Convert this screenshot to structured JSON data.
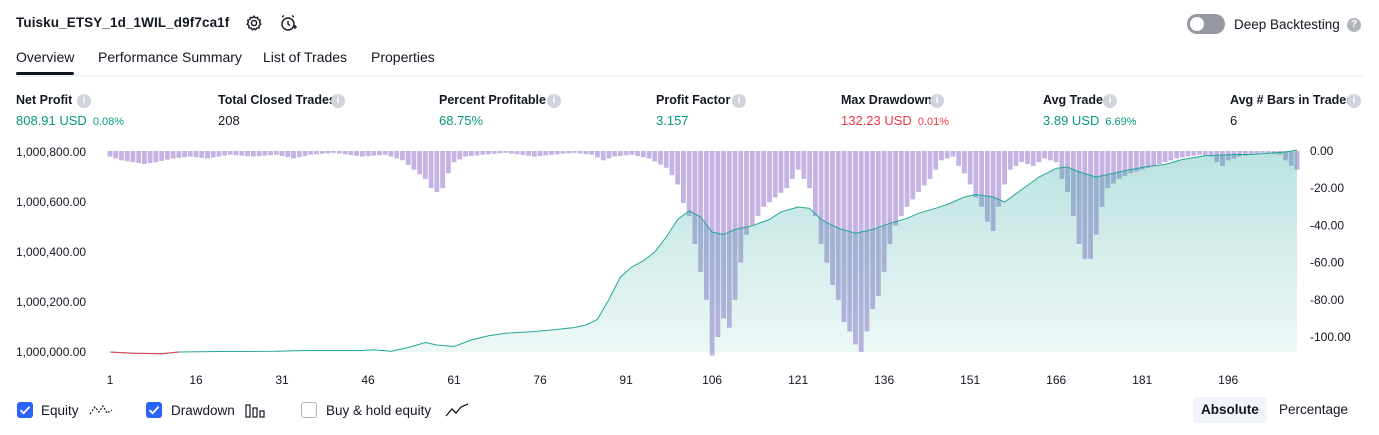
{
  "header": {
    "title": "Tuisku_ETSY_1d_1WIL_d9f7ca1f",
    "settings_icon": "gear-icon",
    "alert_icon": "add-alert-icon",
    "deep_backtesting_label": "Deep Backtesting",
    "deep_backtesting_enabled": false
  },
  "tabs": [
    {
      "label": "Overview",
      "active": true
    },
    {
      "label": "Performance Summary",
      "active": false
    },
    {
      "label": "List of Trades",
      "active": false
    },
    {
      "label": "Properties",
      "active": false
    }
  ],
  "metrics": [
    {
      "label": "Net Profit",
      "value": "808.91 USD",
      "pct": "0.08%",
      "color": "#089981"
    },
    {
      "label": "Total Closed Trades",
      "value": "208",
      "pct": "",
      "color": "#131722"
    },
    {
      "label": "Percent Profitable",
      "value": "68.75%",
      "pct": "",
      "color": "#089981"
    },
    {
      "label": "Profit Factor",
      "value": "3.157",
      "pct": "",
      "color": "#089981"
    },
    {
      "label": "Max Drawdown",
      "value": "132.23 USD",
      "pct": "0.01%",
      "color": "#f23645"
    },
    {
      "label": "Avg Trade",
      "value": "3.89 USD",
      "pct": "6.69%",
      "color": "#089981"
    },
    {
      "label": "Avg # Bars in Trades",
      "value": "6",
      "pct": "",
      "color": "#131722"
    }
  ],
  "chart_data": {
    "type": "area",
    "x_ticks": [
      "1",
      "16",
      "31",
      "46",
      "61",
      "76",
      "91",
      "106",
      "121",
      "136",
      "151",
      "166",
      "181",
      "196"
    ],
    "left_axis_ticks": [
      "1,000,800.00",
      "1,000,600.00",
      "1,000,400.00",
      "1,000,200.00",
      "1,000,000.00"
    ],
    "right_axis_ticks": [
      "0.00",
      "-20.00",
      "-40.00",
      "-60.00",
      "-80.00",
      "-100.00"
    ],
    "left_ylim": [
      1000000,
      1000800
    ],
    "right_ylim": [
      -110,
      0
    ],
    "xlim": [
      1,
      208
    ],
    "series": [
      {
        "name": "Equity",
        "color": "#26a69a",
        "points": [
          [
            1,
            1000000
          ],
          [
            5,
            999995
          ],
          [
            10,
            999993
          ],
          [
            13,
            1000000
          ],
          [
            20,
            1000002
          ],
          [
            30,
            1000003
          ],
          [
            35,
            1000006
          ],
          [
            45,
            1000006
          ],
          [
            47,
            1000009
          ],
          [
            50,
            1000003
          ],
          [
            53,
            1000018
          ],
          [
            56,
            1000038
          ],
          [
            58,
            1000028
          ],
          [
            61,
            1000022
          ],
          [
            64,
            1000048
          ],
          [
            67,
            1000065
          ],
          [
            70,
            1000075
          ],
          [
            75,
            1000082
          ],
          [
            78,
            1000088
          ],
          [
            82,
            1000098
          ],
          [
            84,
            1000108
          ],
          [
            86,
            1000130
          ],
          [
            88,
            1000210
          ],
          [
            90,
            1000300
          ],
          [
            92,
            1000340
          ],
          [
            94,
            1000365
          ],
          [
            96,
            1000400
          ],
          [
            98,
            1000460
          ],
          [
            100,
            1000530
          ],
          [
            102,
            1000565
          ],
          [
            104,
            1000540
          ],
          [
            106,
            1000480
          ],
          [
            108,
            1000470
          ],
          [
            110,
            1000490
          ],
          [
            113,
            1000505
          ],
          [
            116,
            1000530
          ],
          [
            118,
            1000560
          ],
          [
            121,
            1000580
          ],
          [
            123,
            1000575
          ],
          [
            125,
            1000530
          ],
          [
            128,
            1000495
          ],
          [
            131,
            1000475
          ],
          [
            134,
            1000490
          ],
          [
            137,
            1000515
          ],
          [
            140,
            1000535
          ],
          [
            142,
            1000555
          ],
          [
            145,
            1000575
          ],
          [
            147,
            1000590
          ],
          [
            150,
            1000620
          ],
          [
            152,
            1000630
          ],
          [
            155,
            1000620
          ],
          [
            157,
            1000600
          ],
          [
            160,
            1000650
          ],
          [
            163,
            1000700
          ],
          [
            166,
            1000735
          ],
          [
            168,
            1000740
          ],
          [
            170,
            1000720
          ],
          [
            173,
            1000700
          ],
          [
            176,
            1000715
          ],
          [
            179,
            1000730
          ],
          [
            182,
            1000742
          ],
          [
            185,
            1000750
          ],
          [
            188,
            1000770
          ],
          [
            192,
            1000785
          ],
          [
            197,
            1000790
          ],
          [
            200,
            1000790
          ],
          [
            203,
            1000795
          ],
          [
            206,
            1000800
          ],
          [
            208,
            1000808
          ]
        ]
      },
      {
        "name": "Drawdown",
        "color": "#b39ddb",
        "points": [
          [
            1,
            -3
          ],
          [
            3,
            -5
          ],
          [
            5,
            -6
          ],
          [
            7,
            -7
          ],
          [
            9,
            -6
          ],
          [
            12,
            -4
          ],
          [
            15,
            -3
          ],
          [
            18,
            -4
          ],
          [
            22,
            -2
          ],
          [
            26,
            -3
          ],
          [
            30,
            -2
          ],
          [
            33,
            -4
          ],
          [
            36,
            -2
          ],
          [
            40,
            -1
          ],
          [
            45,
            -3
          ],
          [
            49,
            -2
          ],
          [
            52,
            -5
          ],
          [
            54,
            -10
          ],
          [
            56,
            -15
          ],
          [
            57,
            -20
          ],
          [
            58,
            -22
          ],
          [
            59,
            -20
          ],
          [
            60,
            -12
          ],
          [
            61,
            -6
          ],
          [
            63,
            -3
          ],
          [
            66,
            -2
          ],
          [
            70,
            -1
          ],
          [
            75,
            -3
          ],
          [
            78,
            -2
          ],
          [
            82,
            -1
          ],
          [
            85,
            -2
          ],
          [
            87,
            -5
          ],
          [
            89,
            -3
          ],
          [
            92,
            -2
          ],
          [
            95,
            -4
          ],
          [
            98,
            -9
          ],
          [
            99,
            -13
          ],
          [
            100,
            -18
          ],
          [
            101,
            -28
          ],
          [
            102,
            -35
          ],
          [
            103,
            -50
          ],
          [
            104,
            -65
          ],
          [
            105,
            -80
          ],
          [
            106,
            -110
          ],
          [
            107,
            -100
          ],
          [
            108,
            -90
          ],
          [
            109,
            -95
          ],
          [
            110,
            -80
          ],
          [
            111,
            -60
          ],
          [
            112,
            -45
          ],
          [
            113,
            -40
          ],
          [
            115,
            -30
          ],
          [
            117,
            -25
          ],
          [
            119,
            -20
          ],
          [
            120,
            -15
          ],
          [
            121,
            -10
          ],
          [
            123,
            -20
          ],
          [
            124,
            -35
          ],
          [
            125,
            -50
          ],
          [
            126,
            -60
          ],
          [
            127,
            -72
          ],
          [
            128,
            -80
          ],
          [
            129,
            -92
          ],
          [
            130,
            -97
          ],
          [
            131,
            -104
          ],
          [
            132,
            -108
          ],
          [
            133,
            -97
          ],
          [
            134,
            -85
          ],
          [
            135,
            -78
          ],
          [
            136,
            -65
          ],
          [
            137,
            -50
          ],
          [
            138,
            -40
          ],
          [
            139,
            -35
          ],
          [
            140,
            -30
          ],
          [
            142,
            -22
          ],
          [
            144,
            -15
          ],
          [
            146,
            -5
          ],
          [
            148,
            -3
          ],
          [
            149,
            -8
          ],
          [
            150,
            -12
          ],
          [
            151,
            -18
          ],
          [
            152,
            -25
          ],
          [
            153,
            -30
          ],
          [
            154,
            -38
          ],
          [
            155,
            -43
          ],
          [
            156,
            -30
          ],
          [
            157,
            -18
          ],
          [
            158,
            -10
          ],
          [
            160,
            -6
          ],
          [
            162,
            -8
          ],
          [
            164,
            -4
          ],
          [
            166,
            -6
          ],
          [
            167,
            -15
          ],
          [
            168,
            -22
          ],
          [
            169,
            -35
          ],
          [
            170,
            -50
          ],
          [
            171,
            -58
          ],
          [
            172,
            -58
          ],
          [
            173,
            -45
          ],
          [
            174,
            -30
          ],
          [
            175,
            -20
          ],
          [
            177,
            -15
          ],
          [
            179,
            -12
          ],
          [
            181,
            -10
          ],
          [
            183,
            -8
          ],
          [
            185,
            -6
          ],
          [
            187,
            -4
          ],
          [
            189,
            -3
          ],
          [
            191,
            -2
          ],
          [
            193,
            -3
          ],
          [
            194,
            -6
          ],
          [
            195,
            -8
          ],
          [
            196,
            -5
          ],
          [
            198,
            -3
          ],
          [
            200,
            -2
          ],
          [
            202,
            -1
          ],
          [
            205,
            -2
          ],
          [
            206,
            -5
          ],
          [
            207,
            -8
          ],
          [
            208,
            -10
          ]
        ]
      }
    ]
  },
  "legend": {
    "items": [
      {
        "label": "Equity",
        "checked": true,
        "icon": "equity-line-icon"
      },
      {
        "label": "Drawdown",
        "checked": true,
        "icon": "drawdown-bars-icon"
      },
      {
        "label": "Buy & hold equity",
        "checked": false,
        "icon": "buy-hold-line-icon"
      }
    ],
    "scale_options": [
      {
        "label": "Absolute",
        "active": true
      },
      {
        "label": "Percentage",
        "active": false
      }
    ]
  }
}
